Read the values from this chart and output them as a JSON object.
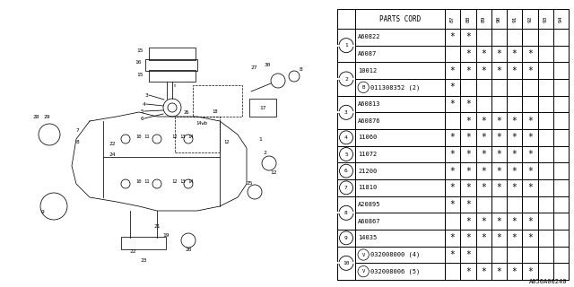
{
  "diagram_id": "A050A00240",
  "table": {
    "header_col": "PARTS CORD",
    "year_cols": [
      "87",
      "88",
      "89",
      "90",
      "91",
      "92",
      "93",
      "94"
    ],
    "rows": [
      {
        "num": 1,
        "num_circle": false,
        "parts": [
          "A60822",
          "A6087"
        ],
        "marks": [
          [
            "*",
            "*",
            "",
            "",
            "",
            "",
            "",
            ""
          ],
          [
            "",
            "*",
            "*",
            "*",
            "*",
            "*",
            "",
            ""
          ]
        ]
      },
      {
        "num": 2,
        "num_circle": true,
        "parts": [
          "10012",
          "B011308352 (2)"
        ],
        "marks": [
          [
            "*",
            "*",
            "*",
            "*",
            "*",
            "*",
            "",
            ""
          ],
          [
            "*",
            "",
            "",
            "",
            "",
            "",
            "",
            ""
          ]
        ]
      },
      {
        "num": 3,
        "num_circle": true,
        "parts": [
          "A60813",
          "A60876"
        ],
        "marks": [
          [
            "*",
            "*",
            "",
            "",
            "",
            "",
            "",
            ""
          ],
          [
            "",
            "*",
            "*",
            "*",
            "*",
            "*",
            "",
            ""
          ]
        ]
      },
      {
        "num": 4,
        "num_circle": true,
        "parts": [
          "11060"
        ],
        "marks": [
          [
            "*",
            "*",
            "*",
            "*",
            "*",
            "*",
            "",
            ""
          ]
        ]
      },
      {
        "num": 5,
        "num_circle": true,
        "parts": [
          "11072"
        ],
        "marks": [
          [
            "*",
            "*",
            "*",
            "*",
            "*",
            "*",
            "",
            ""
          ]
        ]
      },
      {
        "num": 6,
        "num_circle": true,
        "parts": [
          "21200"
        ],
        "marks": [
          [
            "*",
            "*",
            "*",
            "*",
            "*",
            "*",
            "",
            ""
          ]
        ]
      },
      {
        "num": 7,
        "num_circle": true,
        "parts": [
          "11810"
        ],
        "marks": [
          [
            "*",
            "*",
            "*",
            "*",
            "*",
            "*",
            "",
            ""
          ]
        ]
      },
      {
        "num": 8,
        "num_circle": true,
        "parts": [
          "A20895",
          "A60867"
        ],
        "marks": [
          [
            "*",
            "*",
            "",
            "",
            "",
            "",
            "",
            ""
          ],
          [
            "",
            "*",
            "*",
            "*",
            "*",
            "*",
            "",
            ""
          ]
        ]
      },
      {
        "num": 9,
        "num_circle": true,
        "parts": [
          "14035"
        ],
        "marks": [
          [
            "*",
            "*",
            "*",
            "*",
            "*",
            "*",
            "",
            ""
          ]
        ]
      },
      {
        "num": 10,
        "num_circle": true,
        "parts": [
          "V032008000 (4)",
          "V032008006 (5)"
        ],
        "marks": [
          [
            "*",
            "*",
            "",
            "",
            "",
            "",
            "",
            ""
          ],
          [
            "",
            "*",
            "*",
            "*",
            "*",
            "*",
            "",
            ""
          ]
        ]
      }
    ]
  },
  "bg_color": "#ffffff",
  "line_color": "#000000",
  "text_color": "#000000"
}
